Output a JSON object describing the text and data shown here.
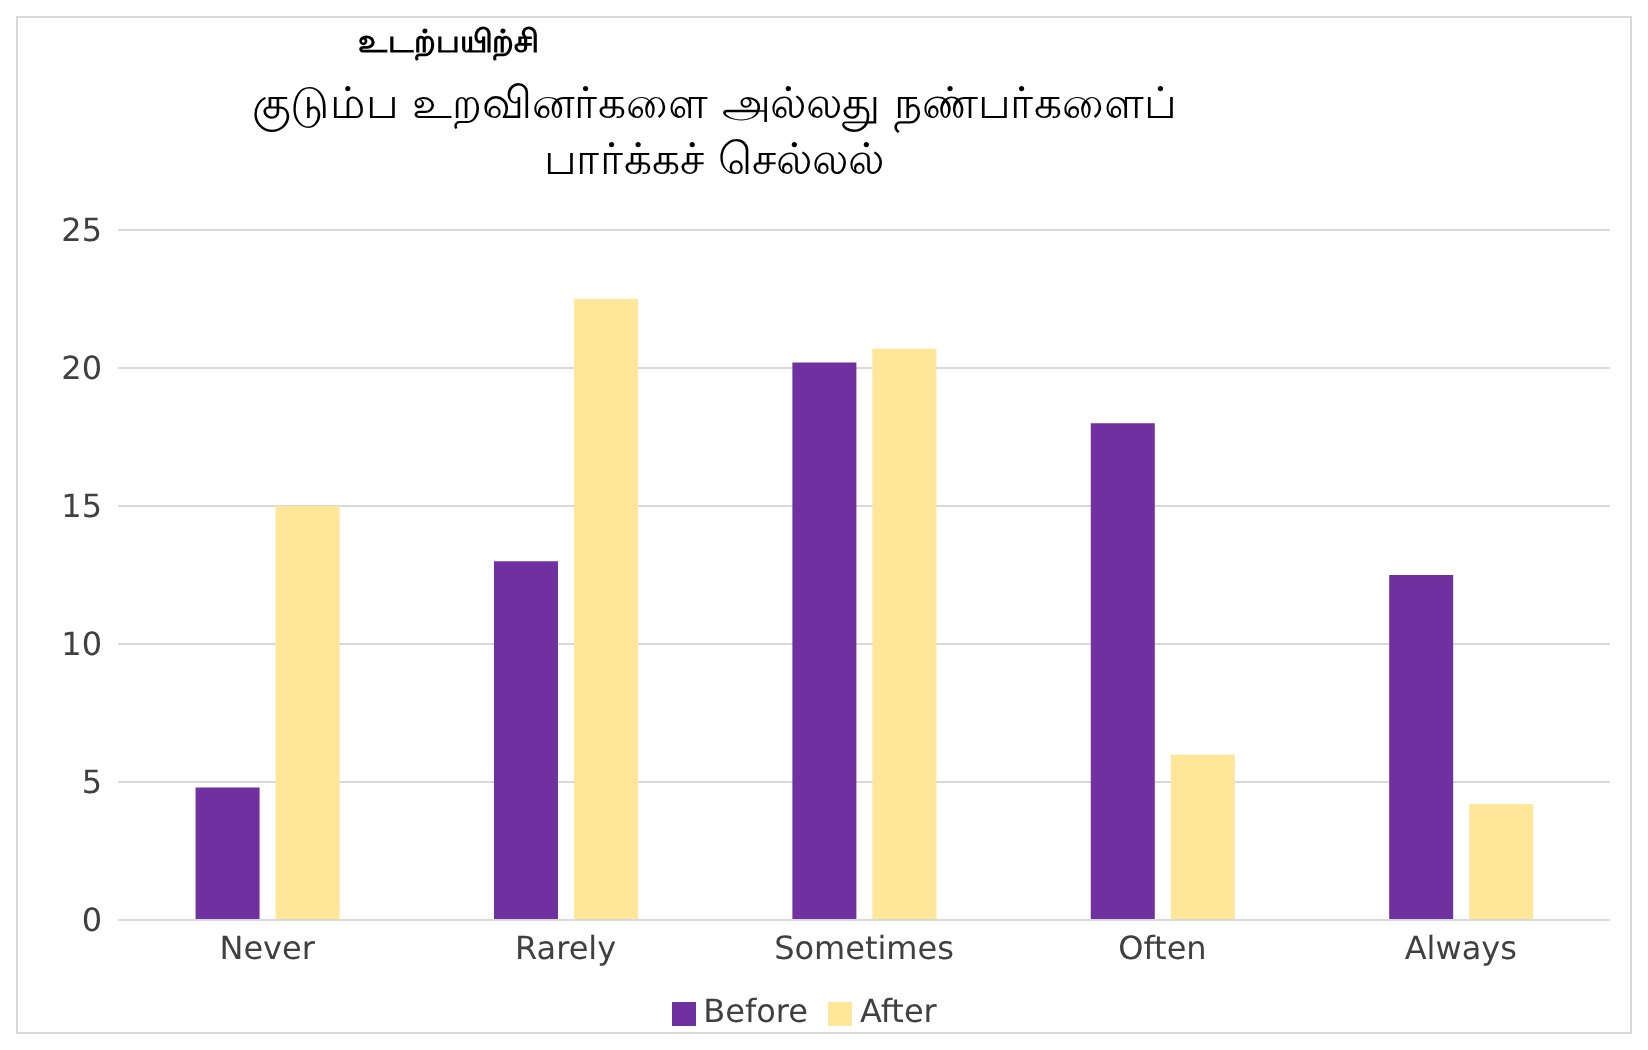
{
  "chart_data": {
    "type": "bar",
    "title": "குடும்ப உறவினர்களை அல்லது நண்பர்களைப் பார்க்கச் செல்லல்",
    "annotations": [
      "உடற்பயிற்சி"
    ],
    "categories": [
      "Never",
      "Rarely",
      "Sometimes",
      "Often",
      "Always"
    ],
    "series": [
      {
        "name": "Before",
        "color": "#7030a0",
        "values": [
          4.8,
          13,
          20.2,
          18,
          12.5
        ]
      },
      {
        "name": "After",
        "color": "#ffe699",
        "values": [
          15,
          22.5,
          20.7,
          6,
          4.2
        ]
      }
    ],
    "ylim": [
      0,
      25
    ],
    "yticks": [
      0,
      5,
      10,
      15,
      20,
      25
    ],
    "grid": "y",
    "legend": "bottom"
  }
}
